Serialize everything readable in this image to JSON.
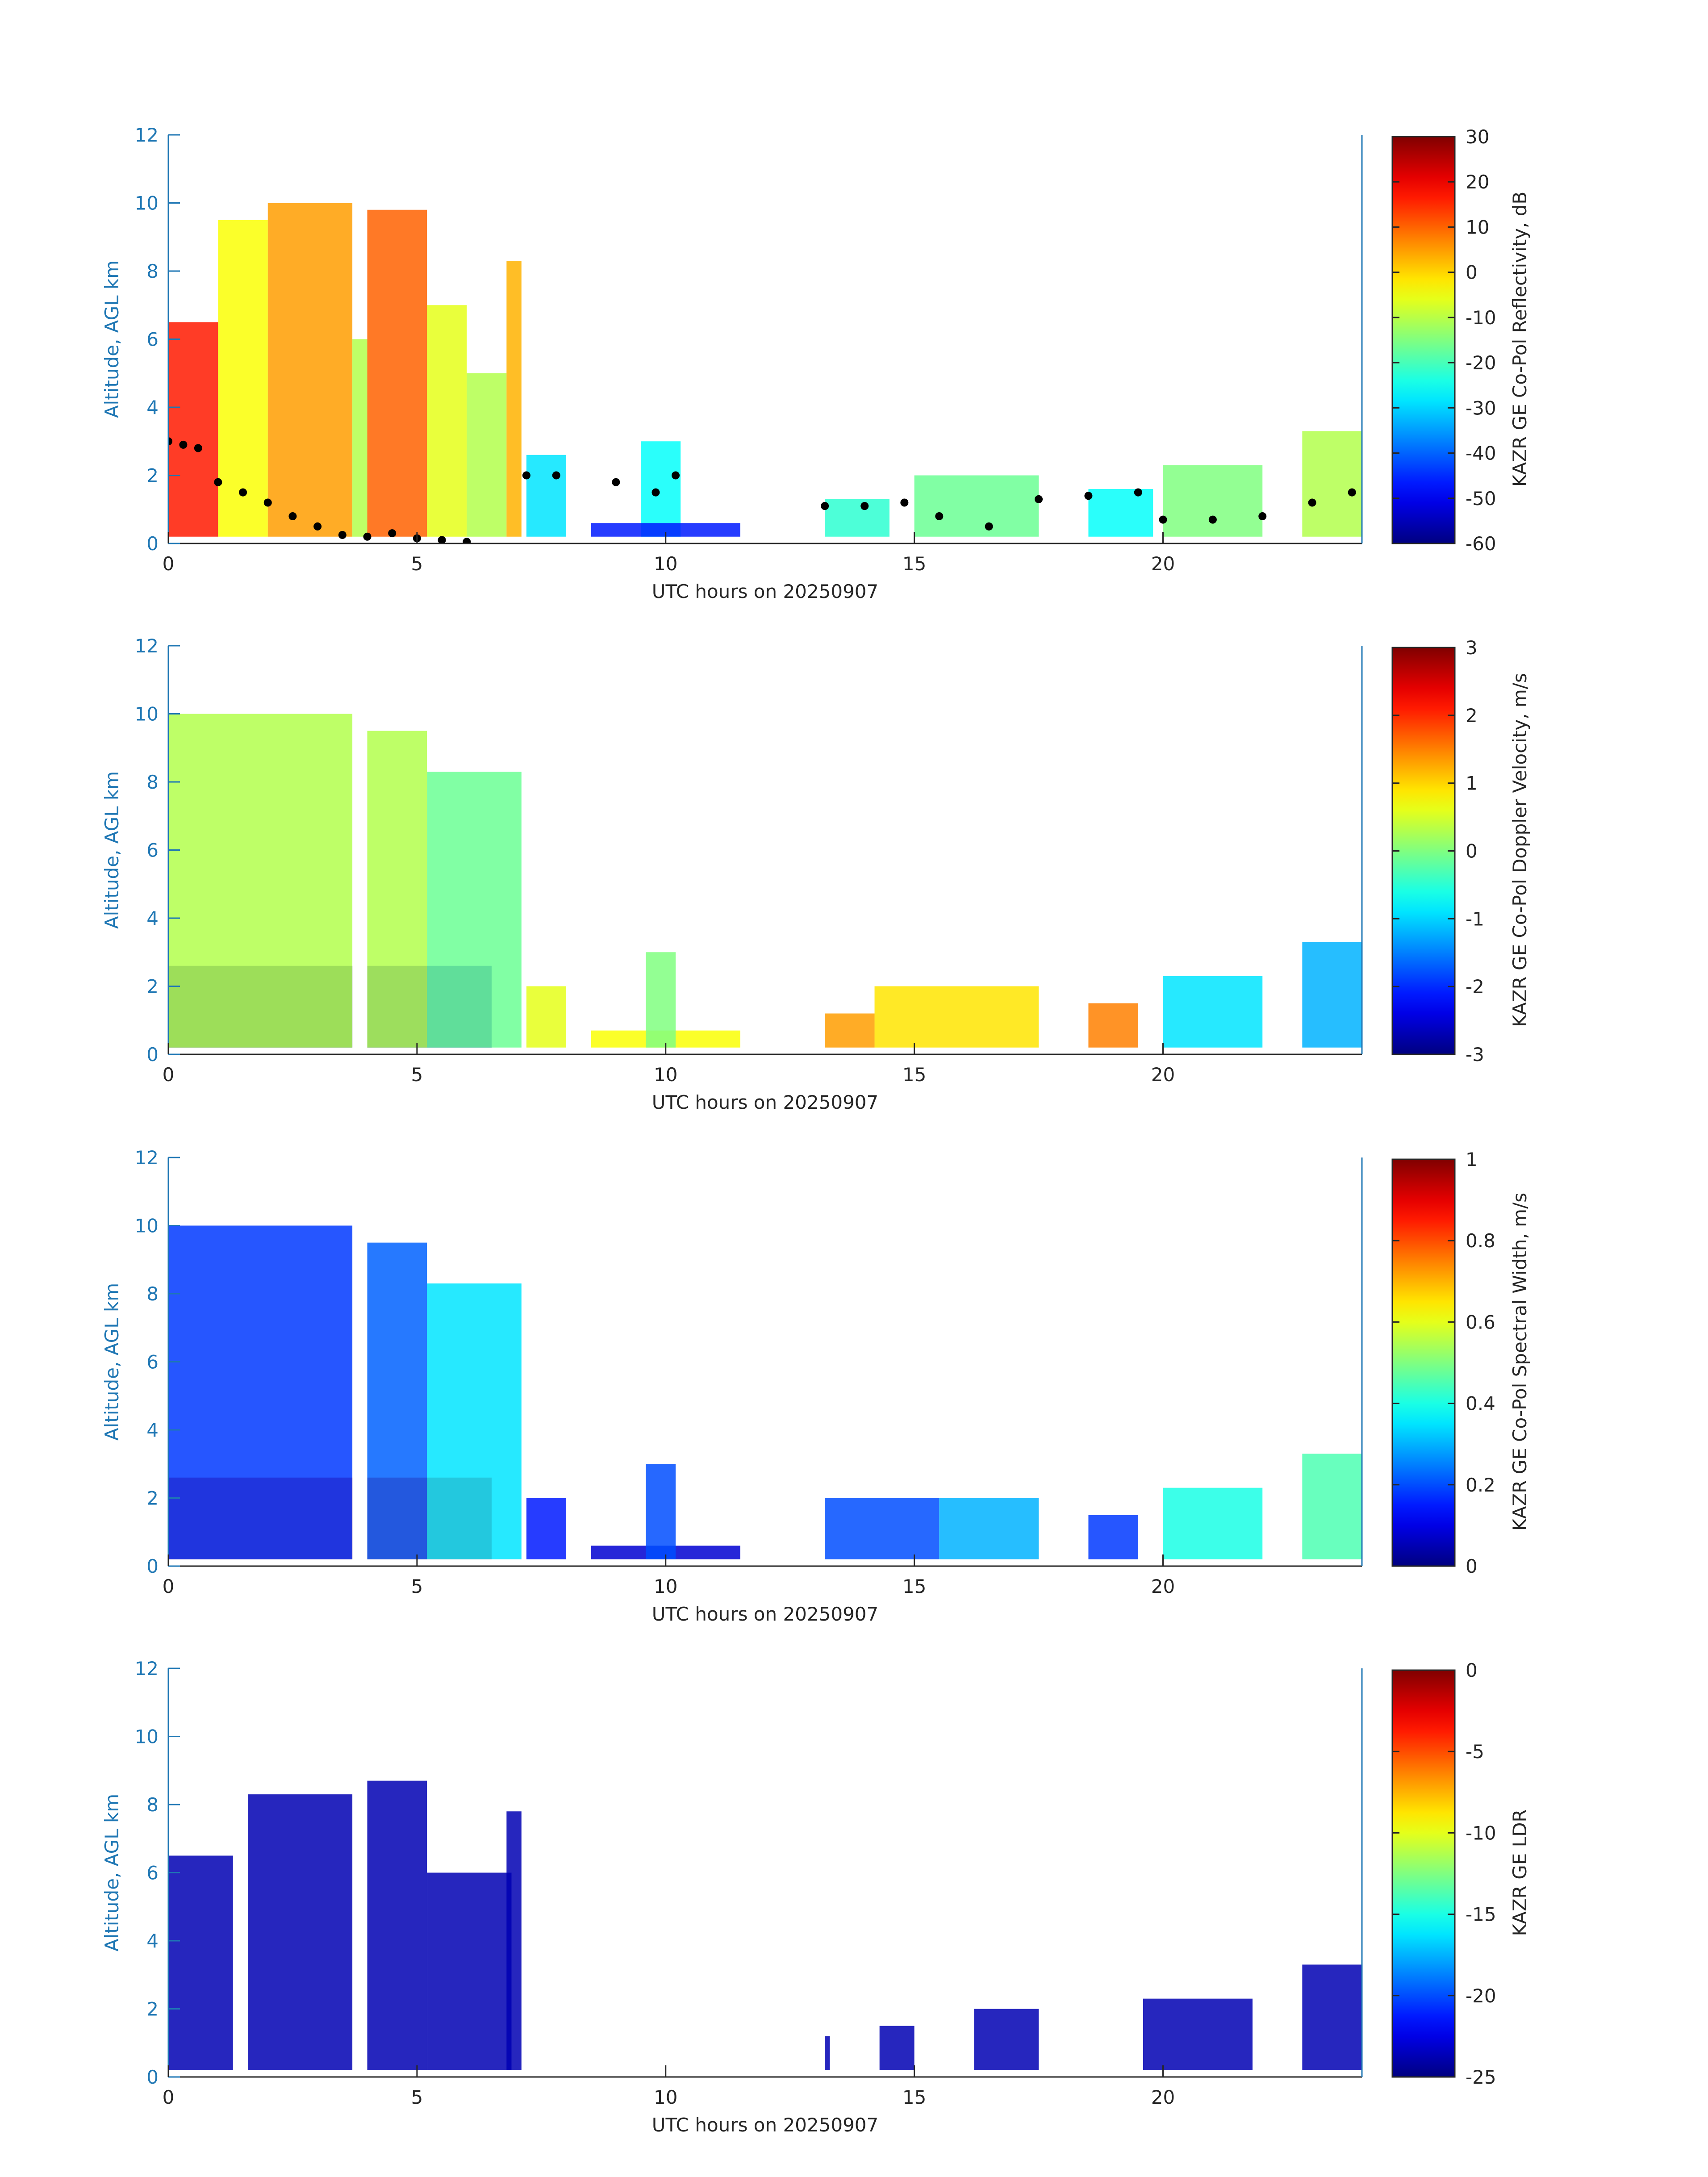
{
  "figure": {
    "xlabel": "UTC hours on 20250907",
    "ylabel": "Altitude, AGL km",
    "axis_color": "#1f77b4",
    "text_color": "#262626"
  },
  "chart_data": [
    {
      "type": "heatmap",
      "title": "",
      "xlabel": "UTC hours on 20250907",
      "ylabel": "Altitude, AGL km",
      "xlim": [
        0,
        24
      ],
      "ylim": [
        0,
        12
      ],
      "xticks": [
        0,
        5,
        10,
        15,
        20
      ],
      "yticks": [
        0,
        2,
        4,
        6,
        8,
        10,
        12
      ],
      "grid": false,
      "colormap": "jet",
      "colorbar": {
        "label": "KAZR GE Co-Pol Reflectivity, dB",
        "range": [
          -60,
          30
        ],
        "ticks": [
          30,
          20,
          10,
          0,
          -10,
          -20,
          -30,
          -40,
          -50,
          -60
        ]
      },
      "overlay": {
        "type": "scatter",
        "color": "#000000",
        "points": [
          [
            0.0,
            3.0
          ],
          [
            0.3,
            2.9
          ],
          [
            0.6,
            2.8
          ],
          [
            1.0,
            1.8
          ],
          [
            1.5,
            1.5
          ],
          [
            2.0,
            1.2
          ],
          [
            2.5,
            0.8
          ],
          [
            3.0,
            0.5
          ],
          [
            3.5,
            0.25
          ],
          [
            4.0,
            0.2
          ],
          [
            4.5,
            0.3
          ],
          [
            5.0,
            0.15
          ],
          [
            5.5,
            0.1
          ],
          [
            6.0,
            0.05
          ],
          [
            7.2,
            2.0
          ],
          [
            7.8,
            2.0
          ],
          [
            9.0,
            1.8
          ],
          [
            9.8,
            1.5
          ],
          [
            10.2,
            2.0
          ],
          [
            13.2,
            1.1
          ],
          [
            14.0,
            1.1
          ],
          [
            14.8,
            1.2
          ],
          [
            15.5,
            0.8
          ],
          [
            16.5,
            0.5
          ],
          [
            17.5,
            1.3
          ],
          [
            18.5,
            1.4
          ],
          [
            19.5,
            1.5
          ],
          [
            20.0,
            0.7
          ],
          [
            21.0,
            0.7
          ],
          [
            22.0,
            0.8
          ],
          [
            23.0,
            1.2
          ],
          [
            23.8,
            1.5
          ]
        ]
      }
    },
    {
      "type": "heatmap",
      "title": "",
      "xlabel": "UTC hours on 20250907",
      "ylabel": "Altitude, AGL km",
      "xlim": [
        0,
        24
      ],
      "ylim": [
        0,
        12
      ],
      "xticks": [
        0,
        5,
        10,
        15,
        20
      ],
      "yticks": [
        0,
        2,
        4,
        6,
        8,
        10,
        12
      ],
      "grid": false,
      "colormap": "jet",
      "colorbar": {
        "label": "KAZR GE Co-Pol Doppler Velocity, m/s",
        "range": [
          -3,
          3
        ],
        "ticks": [
          3,
          2,
          1,
          0,
          -1,
          -2,
          -3
        ]
      }
    },
    {
      "type": "heatmap",
      "title": "",
      "xlabel": "UTC hours on 20250907",
      "ylabel": "Altitude, AGL km",
      "xlim": [
        0,
        24
      ],
      "ylim": [
        0,
        12
      ],
      "xticks": [
        0,
        5,
        10,
        15,
        20
      ],
      "yticks": [
        0,
        2,
        4,
        6,
        8,
        10,
        12
      ],
      "grid": false,
      "colormap": "jet",
      "colorbar": {
        "label": "KAZR GE Co-Pol Spectral Width, m/s",
        "range": [
          0,
          1
        ],
        "ticks": [
          1,
          0.8,
          0.6,
          0.4,
          0.2,
          0
        ]
      }
    },
    {
      "type": "heatmap",
      "title": "",
      "xlabel": "UTC hours on 20250907",
      "ylabel": "Altitude, AGL km",
      "xlim": [
        0,
        24
      ],
      "ylim": [
        0,
        12
      ],
      "xticks": [
        0,
        5,
        10,
        15,
        20
      ],
      "yticks": [
        0,
        2,
        4,
        6,
        8,
        10,
        12
      ],
      "grid": false,
      "colormap": "jet",
      "colorbar": {
        "label": "KAZR GE LDR",
        "range": [
          -25,
          0
        ],
        "ticks": [
          0,
          -5,
          -10,
          -15,
          -20,
          -25
        ]
      }
    }
  ]
}
